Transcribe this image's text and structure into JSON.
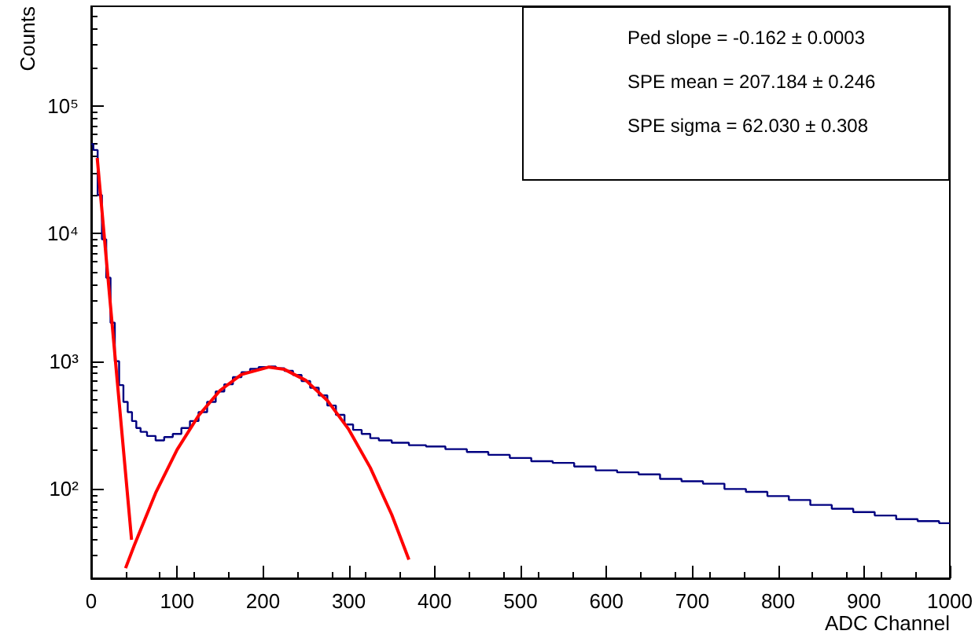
{
  "chart_data": {
    "type": "step",
    "xlabel": "ADC Channel",
    "ylabel": "Counts",
    "log": "y",
    "grid": false,
    "xlim": [
      0,
      1000
    ],
    "xticks": [
      0,
      100,
      200,
      300,
      400,
      500,
      600,
      700,
      800,
      900,
      1000
    ],
    "ylim": [
      20,
      600000
    ],
    "yticks": [
      {
        "value": 100,
        "label": "10²"
      },
      {
        "value": 1000,
        "label": "10³"
      },
      {
        "value": 10000,
        "label": "10⁴"
      },
      {
        "value": 100000,
        "label": "10⁵"
      }
    ],
    "annotations": [
      "Ped slope = -0.162 ± 0.0003",
      "SPE mean  =  207.184 ± 0.246",
      "SPE sigma  =  62.030 ± 0.308"
    ],
    "series": [
      {
        "color": "#000080",
        "x": [
          0,
          5,
          10,
          15,
          20,
          25,
          30,
          35,
          40,
          45,
          50,
          55,
          60,
          70,
          80,
          90,
          100,
          110,
          120,
          130,
          140,
          150,
          160,
          170,
          180,
          190,
          200,
          210,
          220,
          230,
          240,
          250,
          260,
          270,
          280,
          290,
          300,
          310,
          320,
          330,
          340,
          360,
          380,
          400,
          425,
          450,
          475,
          500,
          525,
          550,
          575,
          600,
          625,
          650,
          675,
          700,
          725,
          750,
          775,
          800,
          825,
          850,
          875,
          900,
          925,
          950,
          975,
          1000
        ],
        "values": [
          50000,
          45000,
          20000,
          9000,
          4500,
          2000,
          1000,
          650,
          480,
          400,
          340,
          300,
          280,
          260,
          240,
          255,
          270,
          300,
          340,
          400,
          480,
          580,
          660,
          750,
          820,
          870,
          900,
          910,
          880,
          840,
          780,
          700,
          620,
          540,
          450,
          380,
          320,
          290,
          270,
          250,
          240,
          230,
          220,
          215,
          205,
          195,
          185,
          175,
          165,
          160,
          150,
          140,
          135,
          130,
          120,
          115,
          110,
          100,
          95,
          88,
          82,
          75,
          70,
          66,
          62,
          58,
          56,
          54
        ]
      },
      {
        "type": "line",
        "color": "#ff0000",
        "x": [
          7,
          29,
          47
        ],
        "values": [
          39000,
          880,
          40
        ]
      },
      {
        "type": "line",
        "color": "#ff0000",
        "x": [
          40,
          50,
          75,
          100,
          125,
          150,
          175,
          207,
          225,
          250,
          275,
          300,
          325,
          350,
          370
        ],
        "values": [
          24,
          36,
          93,
          203,
          375,
          590,
          788,
          900,
          863,
          708,
          493,
          292,
          147,
          63,
          28
        ]
      }
    ]
  }
}
